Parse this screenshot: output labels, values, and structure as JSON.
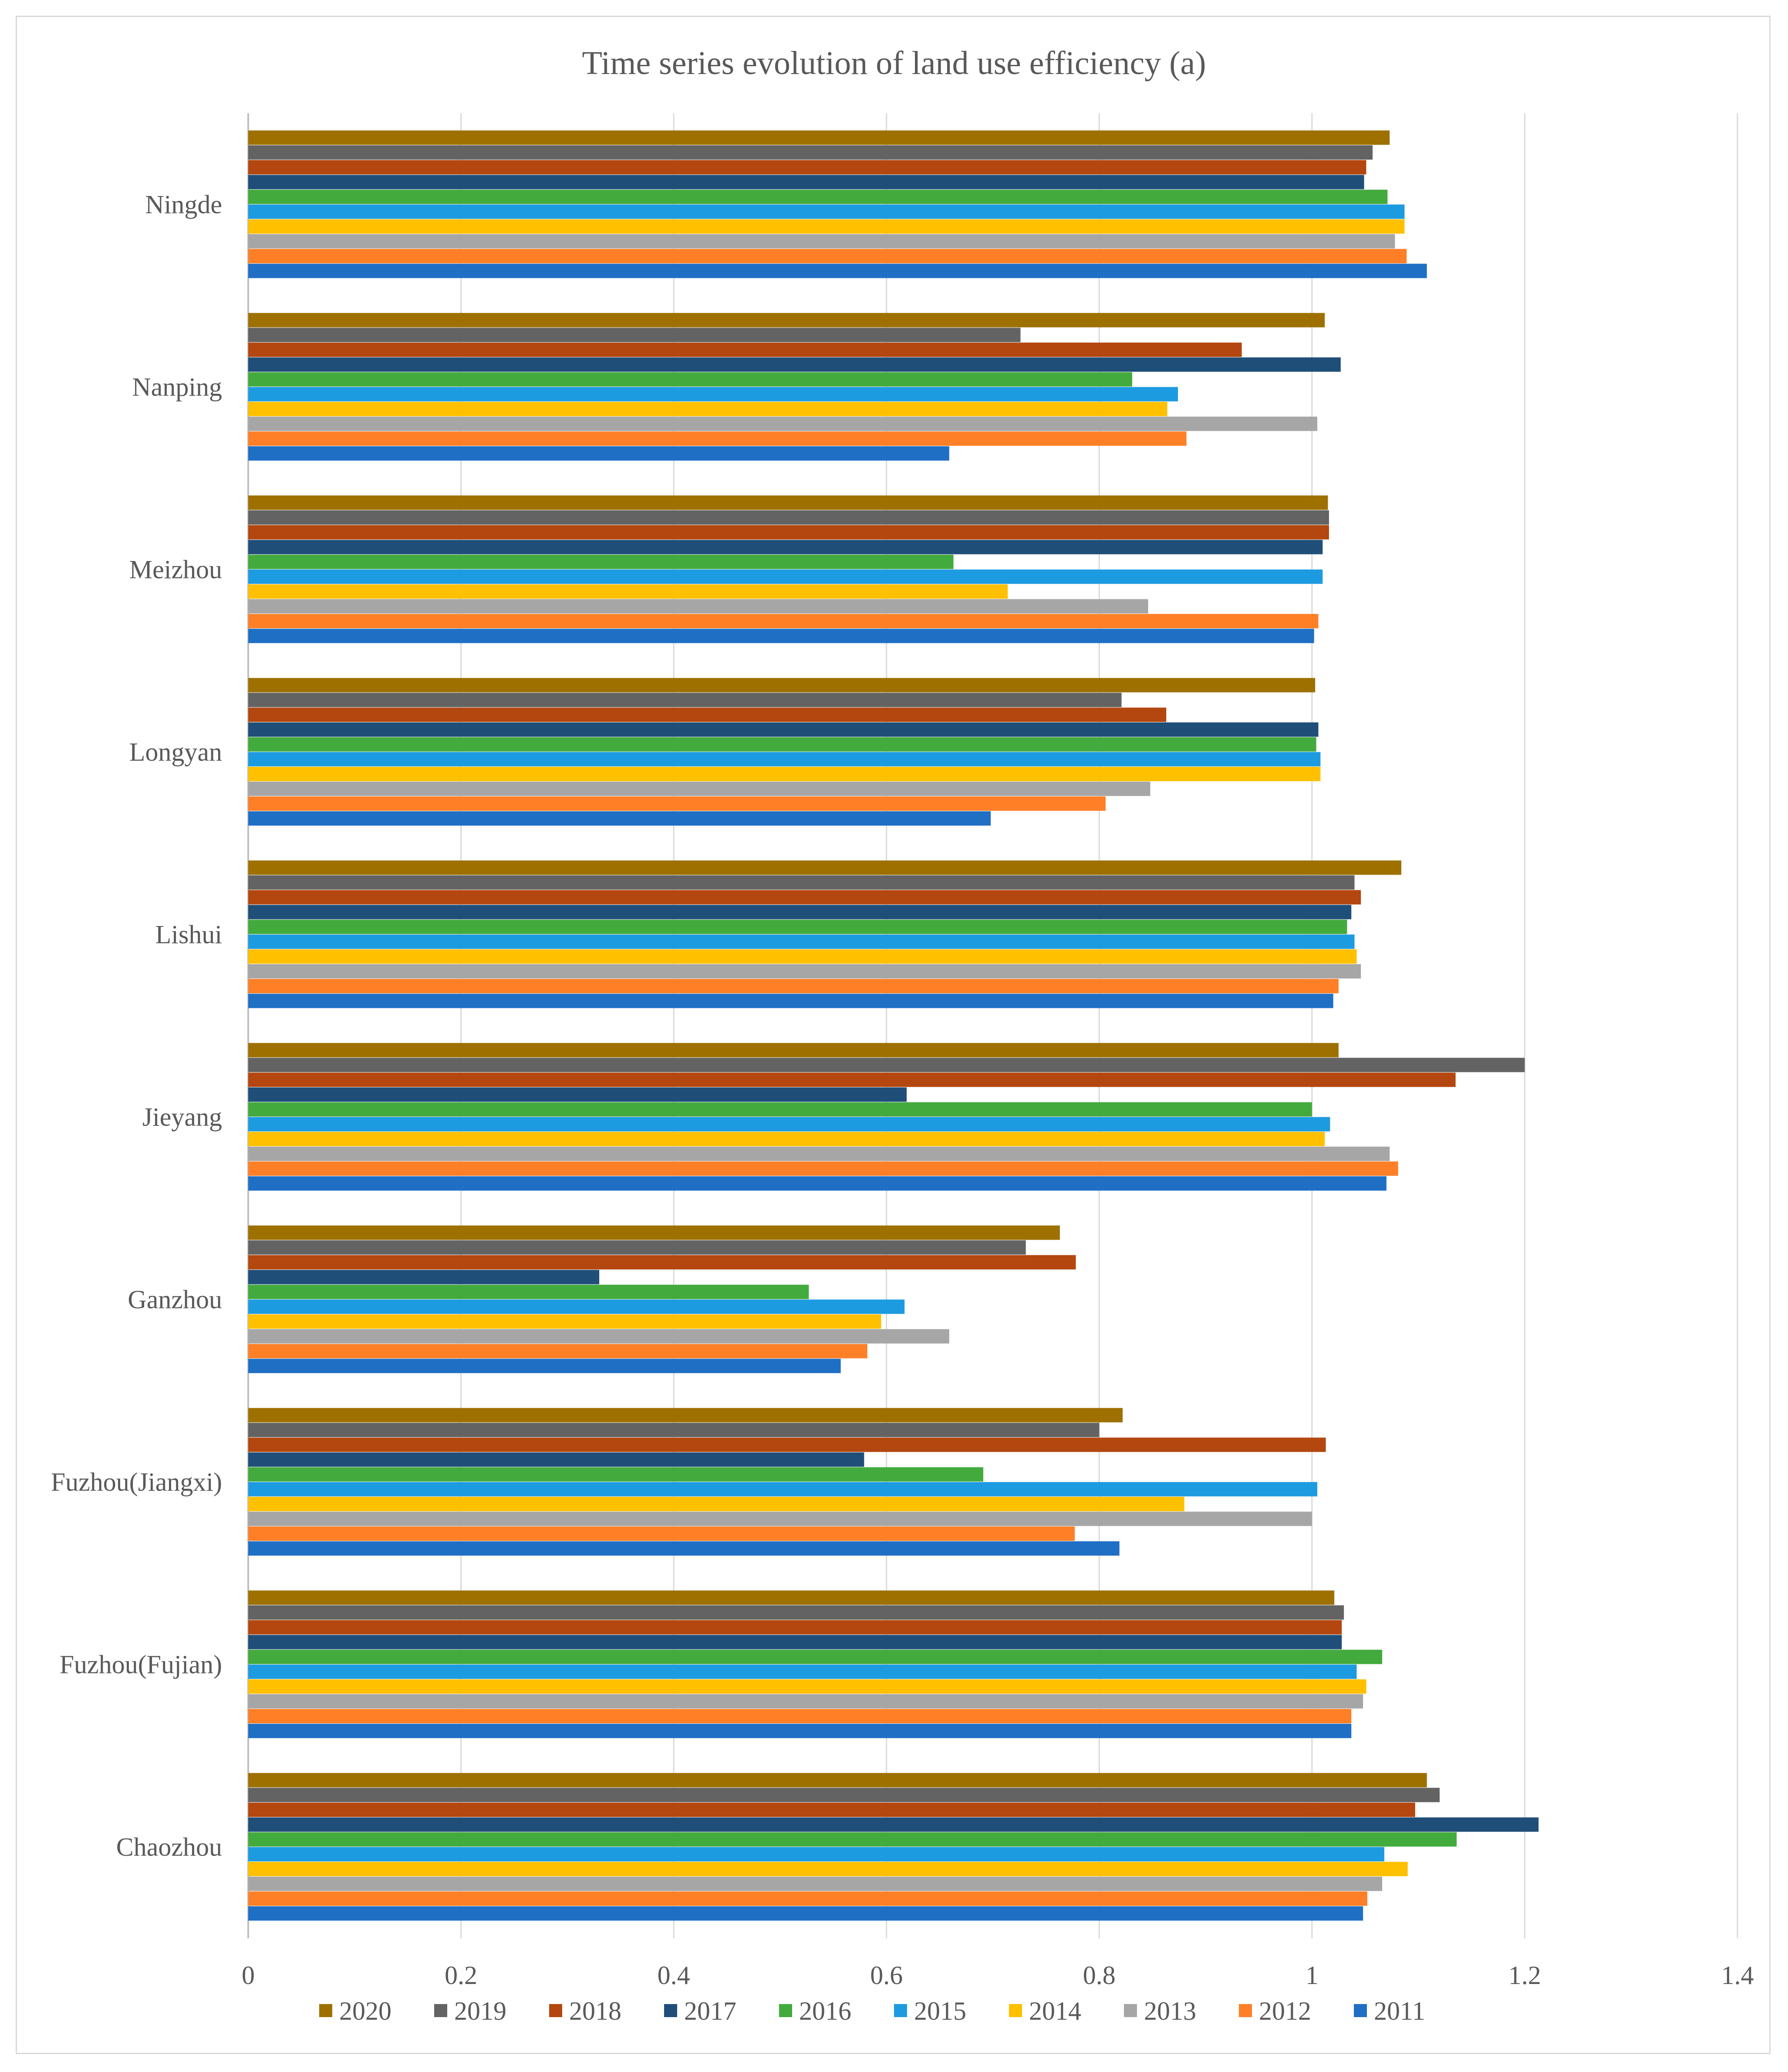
{
  "chart_data": {
    "type": "bar",
    "orientation": "horizontal",
    "title": "Time series evolution of land use efficiency (a)",
    "xlabel": "",
    "ylabel": "",
    "xlim": [
      0,
      1.4
    ],
    "xticks": [
      0,
      0.2,
      0.4,
      0.6,
      0.8,
      1,
      1.2,
      1.4
    ],
    "xtick_labels": [
      "0",
      "0.2",
      "0.4",
      "0.6",
      "0.8",
      "1",
      "1.2",
      "1.4"
    ],
    "grid": true,
    "legend_position": "bottom",
    "categories": [
      "Ningde",
      "Nanping",
      "Meizhou",
      "Longyan",
      "Lishui",
      "Jieyang",
      "Ganzhou",
      "Fuzhou(Jiangxi)",
      "Fuzhou(Fujian)",
      "Chaozhou"
    ],
    "series": [
      {
        "name": "2020",
        "color": "#9E7000",
        "values": [
          1.073,
          1.012,
          1.015,
          1.003,
          1.084,
          1.025,
          0.763,
          0.822,
          1.021,
          1.108
        ]
      },
      {
        "name": "2019",
        "color": "#636363",
        "values": [
          1.057,
          0.726,
          1.016,
          0.821,
          1.04,
          1.2,
          0.731,
          0.8,
          1.03,
          1.12
        ]
      },
      {
        "name": "2018",
        "color": "#B3470F",
        "values": [
          1.051,
          0.934,
          1.016,
          0.863,
          1.046,
          1.135,
          0.778,
          1.013,
          1.028,
          1.097
        ]
      },
      {
        "name": "2017",
        "color": "#1F4E79",
        "values": [
          1.049,
          1.027,
          1.01,
          1.006,
          1.037,
          0.619,
          0.33,
          0.579,
          1.028,
          1.213
        ]
      },
      {
        "name": "2016",
        "color": "#43AA3E",
        "values": [
          1.071,
          0.831,
          0.663,
          1.004,
          1.033,
          1.0,
          0.527,
          0.691,
          1.066,
          1.136
        ]
      },
      {
        "name": "2015",
        "color": "#1D9BE0",
        "values": [
          1.087,
          0.874,
          1.01,
          1.008,
          1.04,
          1.017,
          0.617,
          1.005,
          1.042,
          1.068
        ]
      },
      {
        "name": "2014",
        "color": "#FFC000",
        "values": [
          1.087,
          0.864,
          0.714,
          1.008,
          1.042,
          1.012,
          0.595,
          0.88,
          1.051,
          1.09
        ]
      },
      {
        "name": "2013",
        "color": "#A6A6A6",
        "values": [
          1.078,
          1.005,
          0.846,
          0.848,
          1.046,
          1.073,
          0.659,
          1.0,
          1.048,
          1.066
        ]
      },
      {
        "name": "2012",
        "color": "#FF7F27",
        "values": [
          1.089,
          0.882,
          1.006,
          0.806,
          1.025,
          1.081,
          0.582,
          0.777,
          1.037,
          1.052
        ]
      },
      {
        "name": "2011",
        "color": "#1F6FC5",
        "values": [
          1.108,
          0.659,
          1.002,
          0.698,
          1.02,
          1.07,
          0.557,
          0.819,
          1.037,
          1.048
        ]
      }
    ]
  }
}
